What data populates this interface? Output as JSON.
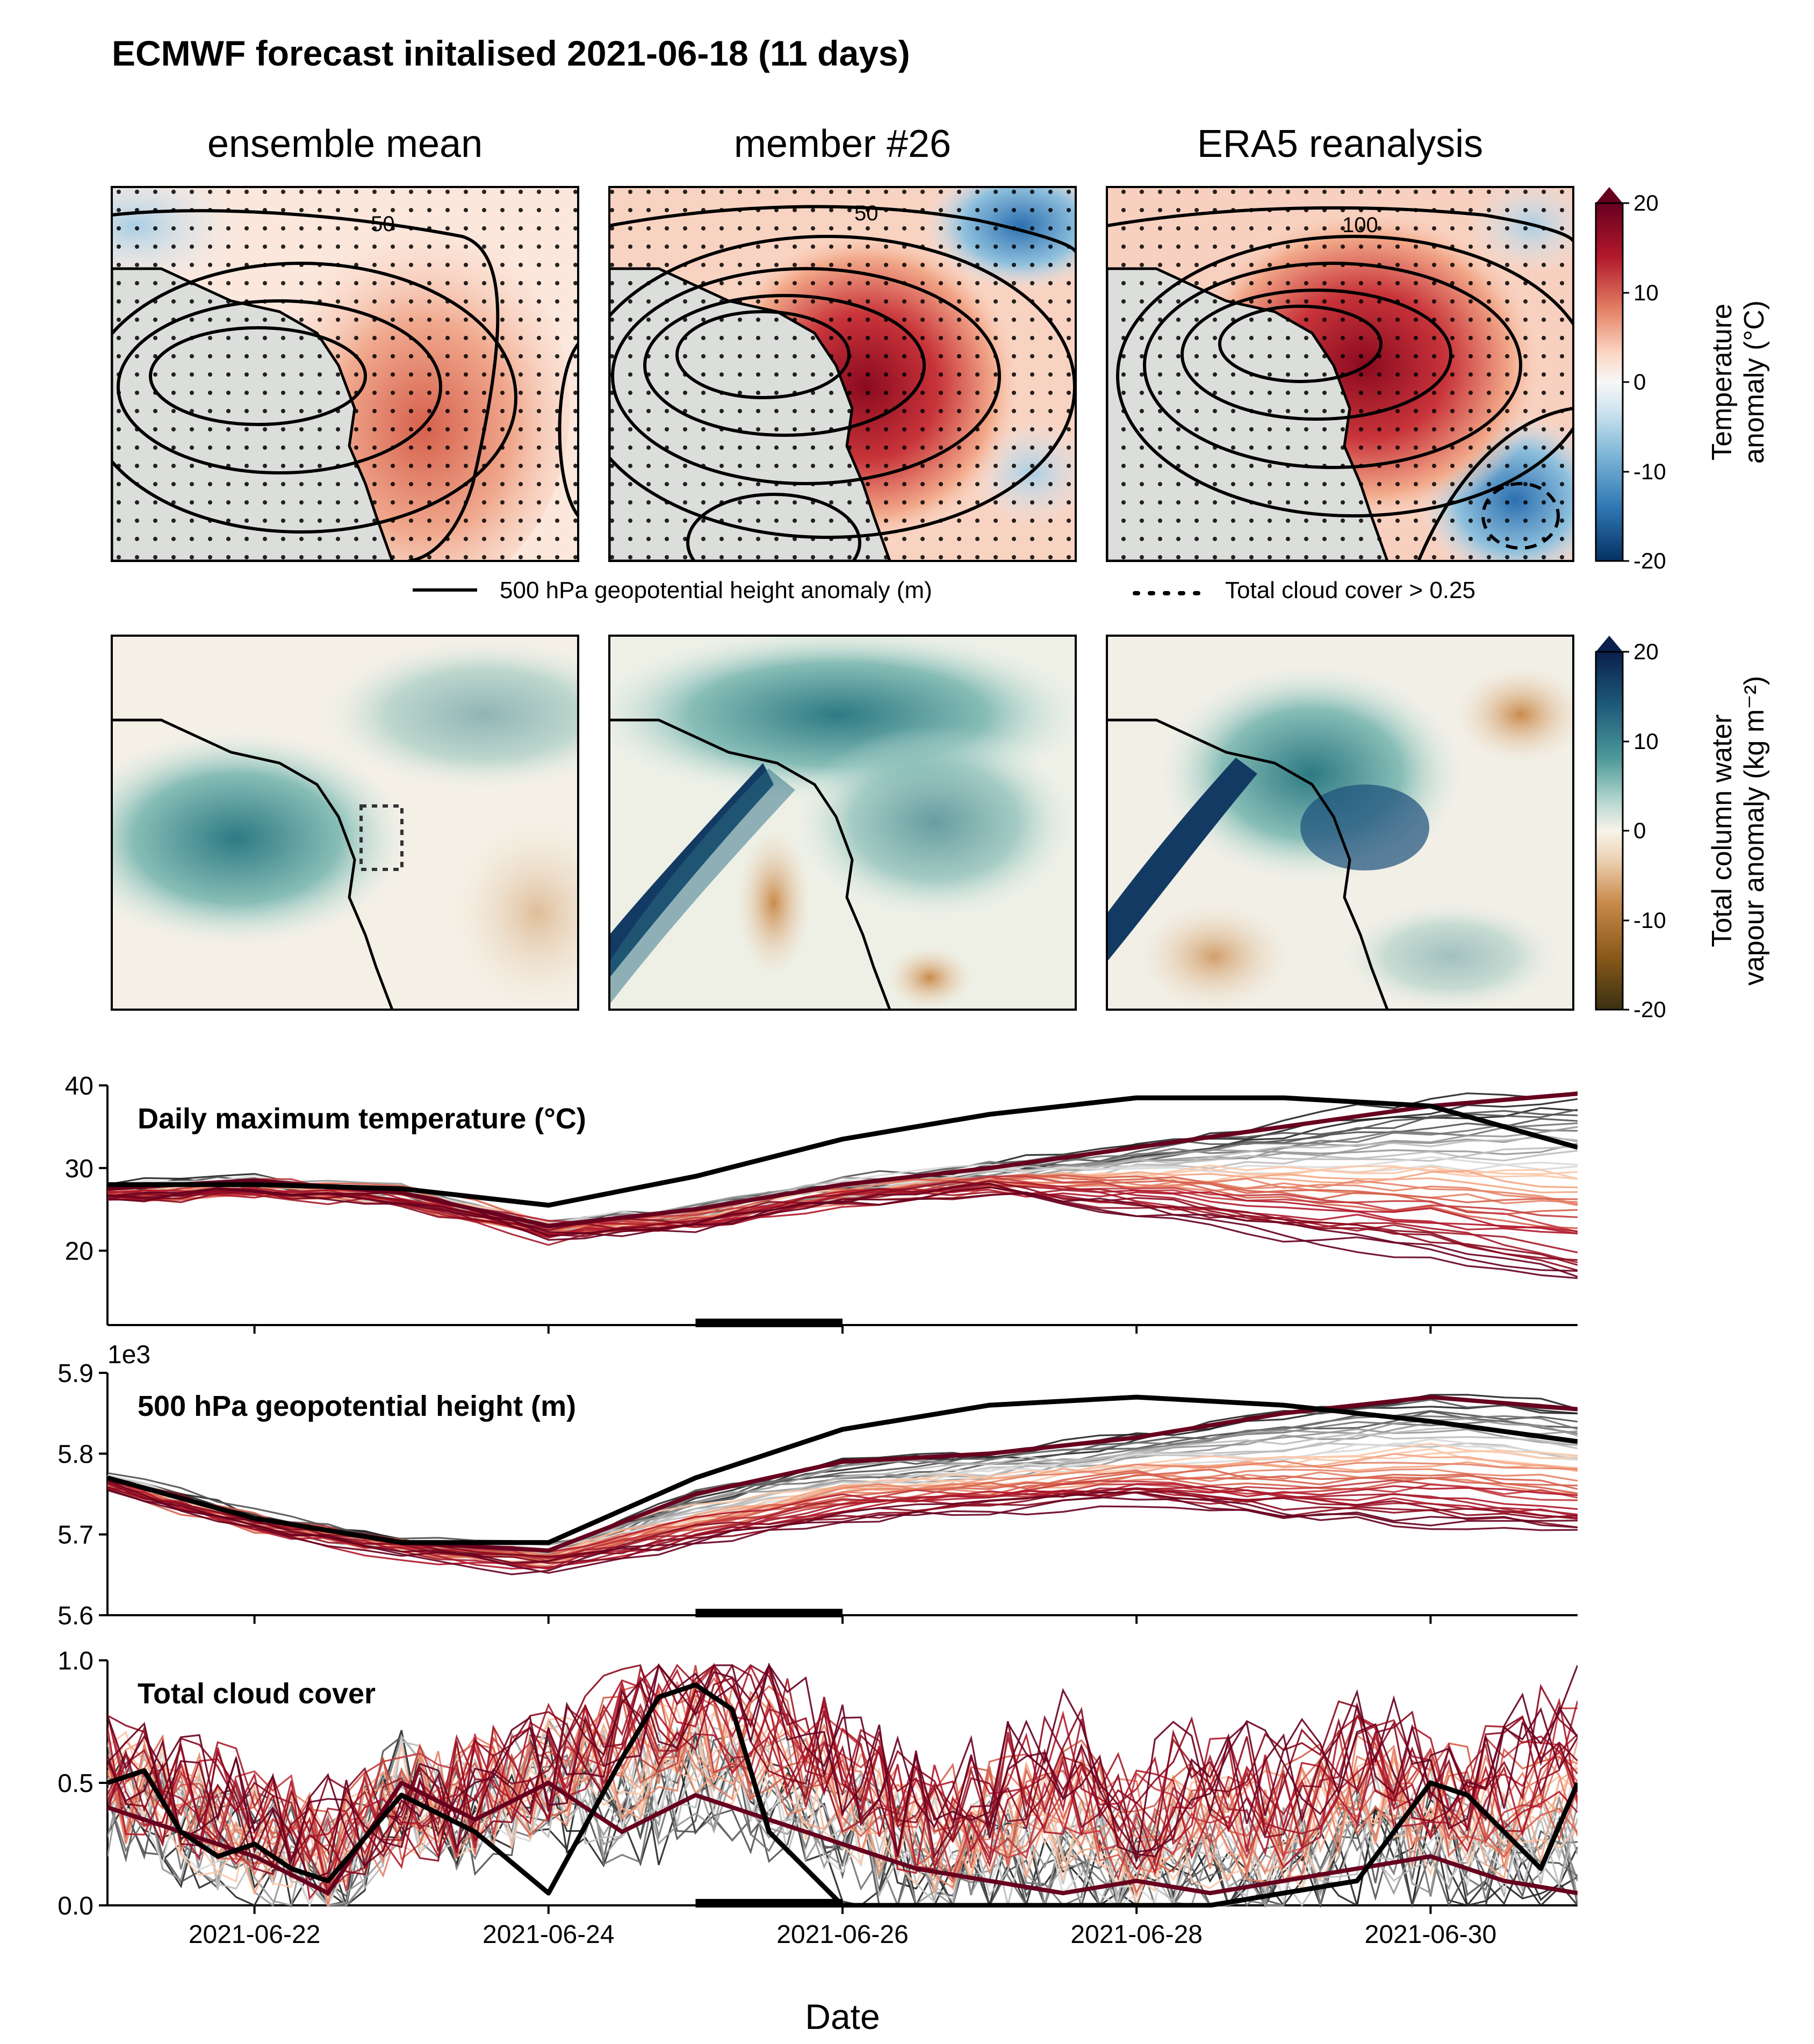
{
  "title": "ECMWF forecast initalised 2021-06-18 (11 days)",
  "map_columns": [
    "ensemble mean",
    "member #26",
    "ERA5 reanalysis"
  ],
  "temperature_colorbar": {
    "label": [
      "Temperature",
      "anomaly (°C)"
    ],
    "ticks": [
      "20",
      "10",
      "0",
      "-10",
      "-20"
    ],
    "range": [
      -20,
      20
    ],
    "colormap": "RdBu_r",
    "colors": {
      "high": "#67001f",
      "mid": "#f7f7f7",
      "low": "#053061"
    }
  },
  "tcwv_colorbar": {
    "label": [
      "Total column water",
      "vapour anomaly (kg m⁻²)"
    ],
    "ticks": [
      "20",
      "10",
      "0",
      "-10",
      "-20"
    ],
    "range": [
      -20,
      20
    ],
    "colormap": "BrBG-like",
    "colors": {
      "high": "#0b1f4e",
      "mid": "#f8f3ea",
      "low": "#3a3010"
    }
  },
  "contour_labels": [
    "50",
    "50",
    "100"
  ],
  "legend": {
    "z500": "500 hPa geopotential height anomaly (m)",
    "cloud": "Total cloud cover > 0.25"
  },
  "chart_data": [
    {
      "type": "line",
      "title": "Daily maximum temperature (°C)",
      "ylim": [
        11,
        40
      ],
      "yticks": [
        "40",
        "30",
        "20"
      ],
      "x_start": "2021-06-21",
      "x_end": "2021-07-01",
      "event_period": [
        "2021-06-25",
        "2021-06-26"
      ],
      "series": [
        {
          "x": [
            0,
            1,
            2,
            3,
            4,
            5,
            6,
            7,
            8,
            9,
            10
          ],
          "values": [
            28.0,
            28.0,
            27.5,
            25.5,
            29.0,
            33.5,
            36.5,
            38.5,
            38.5,
            37.5,
            32.5
          ],
          "color": "#000000"
        },
        {
          "x": [
            0,
            1,
            2,
            3,
            4,
            5,
            6,
            7,
            8,
            9,
            10
          ],
          "values": [
            27.5,
            28.5,
            27.0,
            23.0,
            25.0,
            28.0,
            30.0,
            32.5,
            35.0,
            37.5,
            39.0
          ],
          "color": "#67001f"
        },
        {
          "x": [
            0,
            1,
            2,
            3,
            4,
            5,
            6,
            7,
            8,
            9,
            10
          ],
          "values": [
            26.5,
            27.0,
            26.0,
            22.0,
            23.0,
            26.0,
            27.0,
            25.0,
            22.0,
            20.0,
            16.0
          ],
          "color": "#222222"
        }
      ]
    },
    {
      "type": "line",
      "title": "500 hPa geopotential height (m)",
      "offset_text": "1e3",
      "ylim": [
        5.6,
        5.9
      ],
      "yticks": [
        "5.9",
        "5.8",
        "5.7",
        "5.6"
      ],
      "x_start": "2021-06-21",
      "x_end": "2021-07-01",
      "event_period": [
        "2021-06-25",
        "2021-06-26"
      ],
      "series": [
        {
          "x": [
            0,
            1,
            2,
            3,
            4,
            5,
            6,
            7,
            8,
            9,
            10
          ],
          "values": [
            5.77,
            5.72,
            5.69,
            5.69,
            5.77,
            5.83,
            5.86,
            5.87,
            5.86,
            5.84,
            5.815
          ],
          "color": "#000000"
        },
        {
          "x": [
            0,
            1,
            2,
            3,
            4,
            5,
            6,
            7,
            8,
            9,
            10
          ],
          "values": [
            5.77,
            5.72,
            5.69,
            5.68,
            5.75,
            5.79,
            5.8,
            5.82,
            5.85,
            5.87,
            5.855
          ],
          "color": "#67001f"
        },
        {
          "x": [
            0,
            1,
            2,
            3,
            4,
            5,
            6,
            7,
            8,
            9,
            10
          ],
          "values": [
            5.76,
            5.71,
            5.68,
            5.66,
            5.69,
            5.72,
            5.73,
            5.74,
            5.72,
            5.71,
            5.7
          ],
          "color": "#333333"
        }
      ]
    },
    {
      "type": "line",
      "title": "Total cloud cover",
      "xlabel": "Date",
      "ylim": [
        0.0,
        1.0
      ],
      "yticks": [
        "1.0",
        "0.5",
        "0.0"
      ],
      "x_start": "2021-06-21",
      "x_end": "2021-07-01",
      "xticks": [
        "2021-06-22",
        "2021-06-24",
        "2021-06-26",
        "2021-06-28",
        "2021-06-30"
      ],
      "event_period": [
        "2021-06-25",
        "2021-06-26"
      ],
      "series": [
        {
          "x": [
            0,
            0.25,
            0.5,
            0.75,
            1,
            1.25,
            1.5,
            2,
            2.5,
            3,
            3.5,
            3.75,
            4,
            4.25,
            4.5,
            5,
            5.5,
            6,
            6.5,
            7,
            7.5,
            8,
            8.5,
            9,
            9.25,
            9.5,
            9.75,
            10
          ],
          "values": [
            0.5,
            0.55,
            0.3,
            0.2,
            0.25,
            0.15,
            0.1,
            0.45,
            0.3,
            0.05,
            0.6,
            0.85,
            0.9,
            0.8,
            0.3,
            0.0,
            0.0,
            0.0,
            0.0,
            0.0,
            0.0,
            0.05,
            0.1,
            0.5,
            0.45,
            0.3,
            0.15,
            0.5
          ],
          "color": "#000000"
        },
        {
          "x": [
            0,
            0.5,
            1,
            1.5,
            2,
            2.5,
            3,
            3.5,
            4,
            4.5,
            5,
            5.5,
            6,
            6.5,
            7,
            7.5,
            8,
            8.5,
            9,
            9.5,
            10
          ],
          "values": [
            0.4,
            0.3,
            0.2,
            0.05,
            0.5,
            0.35,
            0.5,
            0.3,
            0.45,
            0.35,
            0.25,
            0.15,
            0.1,
            0.05,
            0.1,
            0.05,
            0.1,
            0.15,
            0.2,
            0.1,
            0.05
          ],
          "color": "#67001f"
        },
        {
          "x": [
            0,
            0.5,
            1,
            1.5,
            2,
            2.5,
            3,
            3.5,
            4,
            4.5,
            5,
            5.5,
            6,
            6.5,
            7,
            7.5,
            8,
            8.5,
            9,
            9.5,
            10
          ],
          "values": [
            0.6,
            0.5,
            0.4,
            0.3,
            0.35,
            0.5,
            0.6,
            0.8,
            0.95,
            0.85,
            0.6,
            0.4,
            0.5,
            0.7,
            0.4,
            0.6,
            0.5,
            0.7,
            0.55,
            0.6,
            0.8
          ],
          "color": "#333333"
        }
      ]
    }
  ]
}
